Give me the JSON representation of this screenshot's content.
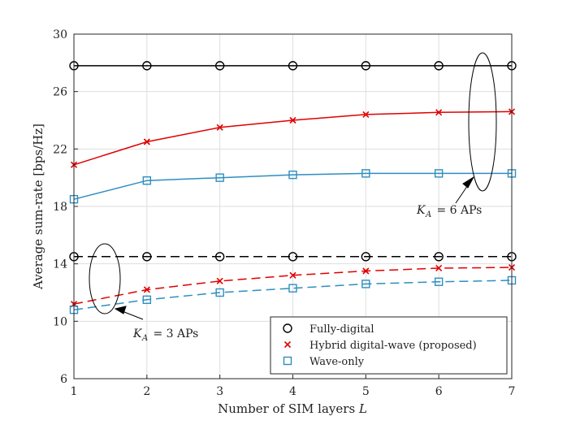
{
  "chart_data": {
    "type": "line",
    "xlabel_text": "Number of SIM layers",
    "xlabel_var": "L",
    "ylabel": "Average sum-rate [bps/Hz]",
    "x": [
      1,
      2,
      3,
      4,
      5,
      6,
      7
    ],
    "xlim": [
      1,
      7
    ],
    "ylim": [
      6,
      30
    ],
    "xticks": [
      1,
      2,
      3,
      4,
      5,
      6,
      7
    ],
    "yticks": [
      6,
      10,
      14,
      18,
      22,
      26,
      30
    ],
    "grid": true,
    "legend_position": "bottom-right",
    "series": [
      {
        "name": "Fully-digital",
        "group": "K_A = 6 APs",
        "color": "#000000",
        "dash": "solid",
        "marker": "circle",
        "values": [
          27.8,
          27.8,
          27.8,
          27.8,
          27.8,
          27.8,
          27.8
        ]
      },
      {
        "name": "Hybrid digital-wave (proposed)",
        "group": "K_A = 6 APs",
        "color": "#e00000",
        "dash": "solid",
        "marker": "x",
        "values": [
          20.9,
          22.5,
          23.5,
          24.0,
          24.4,
          24.55,
          24.6
        ]
      },
      {
        "name": "Wave-only",
        "group": "K_A = 6 APs",
        "color": "#2e8ec0",
        "dash": "solid",
        "marker": "square",
        "values": [
          18.5,
          19.8,
          20.0,
          20.2,
          20.3,
          20.3,
          20.3
        ]
      },
      {
        "name": "Fully-digital",
        "group": "K_A = 3 APs",
        "color": "#000000",
        "dash": "dashed",
        "marker": "circle",
        "values": [
          14.5,
          14.5,
          14.5,
          14.5,
          14.5,
          14.5,
          14.5
        ]
      },
      {
        "name": "Hybrid digital-wave (proposed)",
        "group": "K_A = 3 APs",
        "color": "#e00000",
        "dash": "dashed",
        "marker": "x",
        "values": [
          11.2,
          12.2,
          12.8,
          13.2,
          13.5,
          13.7,
          13.75
        ]
      },
      {
        "name": "Wave-only",
        "group": "K_A = 3 APs",
        "color": "#2e8ec0",
        "dash": "dashed",
        "marker": "square",
        "values": [
          10.8,
          11.5,
          12.0,
          12.3,
          12.6,
          12.75,
          12.85
        ]
      }
    ],
    "legend": [
      {
        "label": "Fully-digital",
        "marker": "circle",
        "color": "#000000"
      },
      {
        "label": "Hybrid digital-wave (proposed)",
        "marker": "x",
        "color": "#e00000"
      },
      {
        "label": "Wave-only",
        "marker": "square",
        "color": "#2e8ec0"
      }
    ],
    "annotations": [
      {
        "var": "K",
        "sub": "A",
        "text": " = 6 APs",
        "points_to": "K_A = 6 APs curves at L = 6.6"
      },
      {
        "var": "K",
        "sub": "A",
        "text": " = 3 APs",
        "points_to": "K_A = 3 APs curves at L = 1.4"
      }
    ]
  }
}
